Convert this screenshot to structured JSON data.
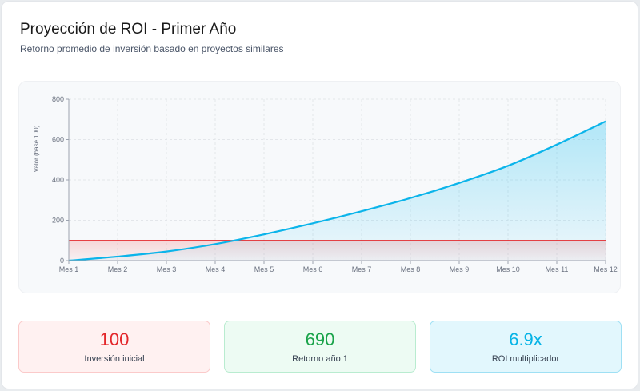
{
  "header": {
    "title": "Proyección de ROI - Primer Año",
    "subtitle": "Retorno promedio de inversión basado en proyectos similares"
  },
  "chart_data": {
    "type": "area",
    "title": "",
    "xlabel": "",
    "ylabel": "Valor (base 100)",
    "categories": [
      "Mes 1",
      "Mes 2",
      "Mes 3",
      "Mes 4",
      "Mes 5",
      "Mes 6",
      "Mes 7",
      "Mes 8",
      "Mes 9",
      "Mes 10",
      "Mes 11",
      "Mes 12"
    ],
    "ylim": [
      0,
      800
    ],
    "yticks": [
      0,
      200,
      400,
      600,
      800
    ],
    "grid": true,
    "legend": "none",
    "series": [
      {
        "name": "",
        "color": "#0bb4ea",
        "fill": true,
        "values": [
          0,
          20,
          45,
          82,
          130,
          185,
          245,
          310,
          385,
          470,
          575,
          690
        ]
      },
      {
        "name": "",
        "color": "#e3262a",
        "fill": true,
        "values": [
          100,
          100,
          100,
          100,
          100,
          100,
          100,
          100,
          100,
          100,
          100,
          100
        ]
      }
    ]
  },
  "stats": [
    {
      "value": "100",
      "label": "Inversión inicial",
      "color": "#e3262a"
    },
    {
      "value": "690",
      "label": "Retorno año 1",
      "color": "#1aa34a"
    },
    {
      "value": "6.9x",
      "label": "ROI multiplicador",
      "color": "#05b3e6"
    }
  ]
}
